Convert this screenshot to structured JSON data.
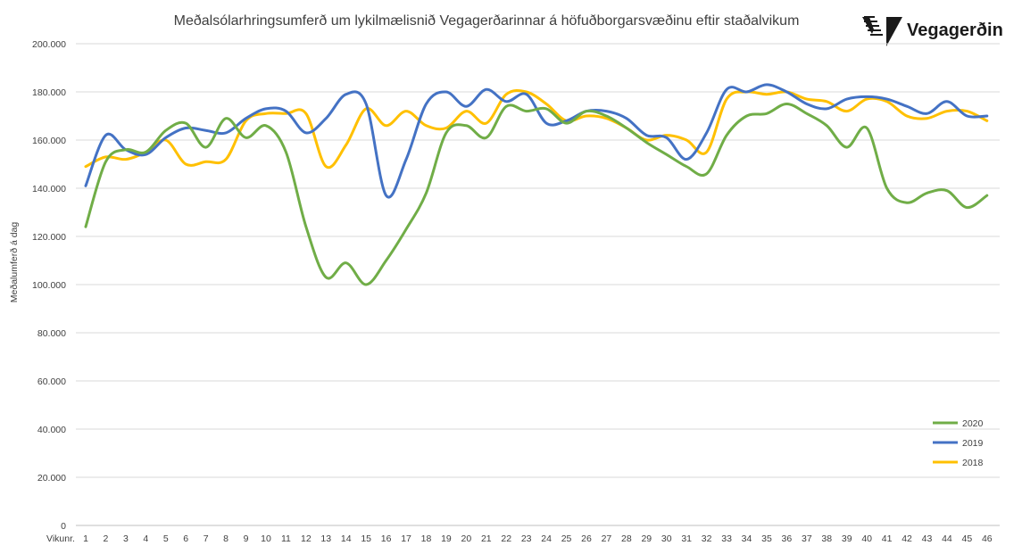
{
  "brand": {
    "name": "Vegagerðin",
    "logo_icon": "vegagerdin-stripes-icon"
  },
  "chart_data": {
    "type": "line",
    "title": "Meðalsólarhringsumferð um lykilmælisnið Vegagerðarinnar á höfuðborgarsvæðinu eftir staðalvikum",
    "xlabel": "Vikunr.",
    "ylabel": "Meðalumferð á dag",
    "x": [
      1,
      2,
      3,
      4,
      5,
      6,
      7,
      8,
      9,
      10,
      11,
      12,
      13,
      14,
      15,
      16,
      17,
      18,
      19,
      20,
      21,
      22,
      23,
      24,
      25,
      26,
      27,
      28,
      29,
      30,
      31,
      32,
      33,
      34,
      35,
      36,
      37,
      38,
      39,
      40,
      41,
      42,
      43,
      44,
      45,
      46
    ],
    "ylim": [
      0,
      200000
    ],
    "yticks": [
      0,
      20000,
      40000,
      60000,
      80000,
      100000,
      120000,
      140000,
      160000,
      180000,
      200000
    ],
    "ytick_labels": [
      "0",
      "20.000",
      "40.000",
      "60.000",
      "80.000",
      "100.000",
      "120.000",
      "140.000",
      "160.000",
      "180.000",
      "200.000"
    ],
    "grid": true,
    "legend_position": "bottom-right",
    "series": [
      {
        "name": "2020",
        "color": "#70ad47",
        "values": [
          124000,
          151000,
          156000,
          155000,
          164000,
          167000,
          157000,
          169000,
          161000,
          166000,
          155000,
          124000,
          103000,
          109000,
          100000,
          110000,
          123000,
          138000,
          163000,
          166000,
          161000,
          174000,
          172000,
          173000,
          167000,
          172000,
          170000,
          165000,
          159000,
          154000,
          149000,
          146000,
          162000,
          170000,
          171000,
          175000,
          171000,
          166000,
          157000,
          165000,
          140000,
          134000,
          138000,
          139000,
          132000,
          137000
        ]
      },
      {
        "name": "2019",
        "color": "#4472c4",
        "values": [
          141000,
          162000,
          156000,
          154000,
          161000,
          165000,
          164000,
          163000,
          169000,
          173000,
          172000,
          163000,
          169000,
          179000,
          175000,
          137000,
          152000,
          175000,
          180000,
          174000,
          181000,
          176000,
          179000,
          167000,
          168000,
          172000,
          172000,
          169000,
          162000,
          161000,
          152000,
          163000,
          181000,
          180000,
          183000,
          180000,
          175000,
          173000,
          177000,
          178000,
          177000,
          174000,
          171000,
          176000,
          170000,
          170000
        ]
      },
      {
        "name": "2018",
        "color": "#ffc000",
        "values": [
          149000,
          153000,
          152000,
          155000,
          160000,
          150000,
          151000,
          152000,
          168000,
          171000,
          171000,
          171000,
          149000,
          158000,
          173000,
          166000,
          172000,
          166000,
          165000,
          172000,
          167000,
          179000,
          180000,
          175000,
          168000,
          170000,
          169000,
          165000,
          160000,
          162000,
          160000,
          155000,
          177000,
          180000,
          179000,
          180000,
          177000,
          176000,
          172000,
          177000,
          176000,
          170000,
          169000,
          172000,
          172000,
          168000
        ]
      }
    ]
  }
}
